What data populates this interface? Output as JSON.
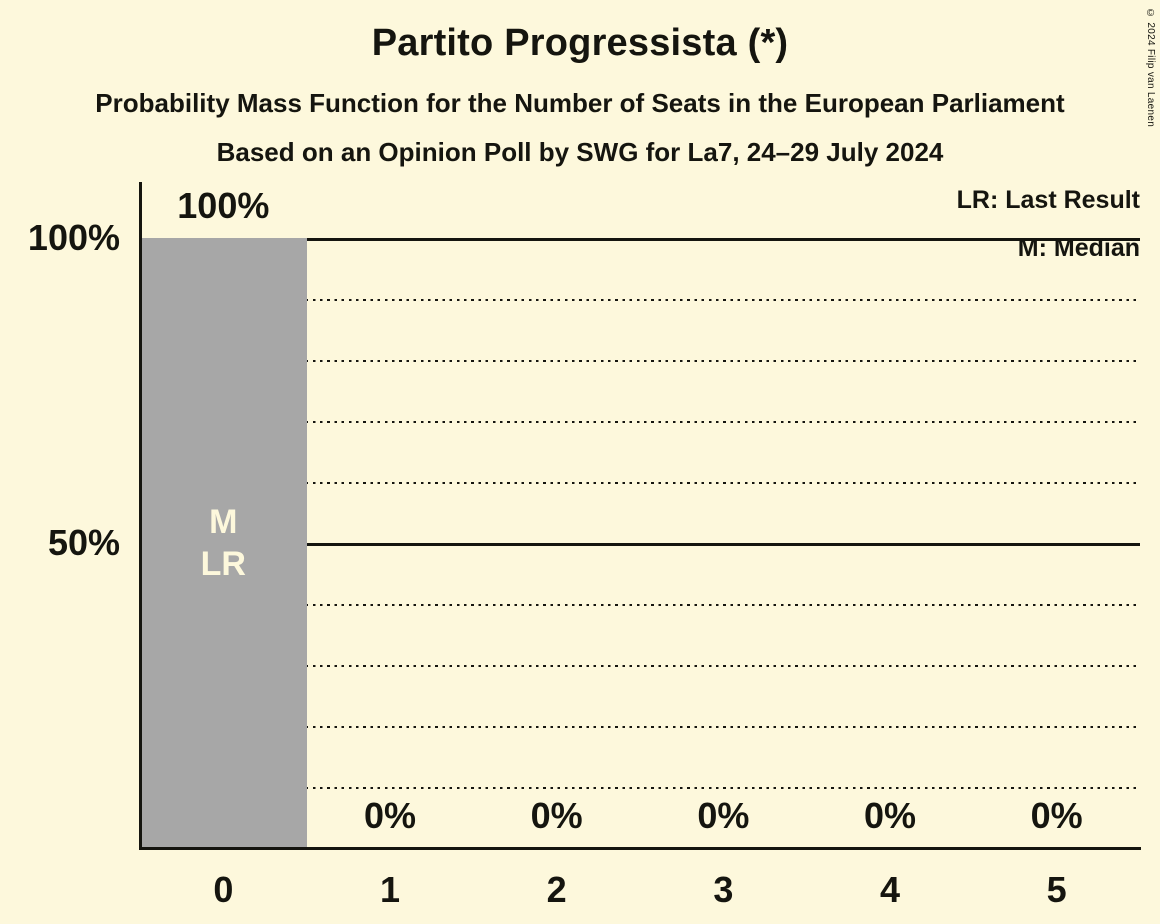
{
  "header": {
    "title": "Partito Progressista (*)",
    "subtitle1": "Probability Mass Function for the Number of Seats in the European Parliament",
    "subtitle2": "Based on an Opinion Poll by SWG for La7, 24–29 July 2024",
    "copyright": "© 2024 Filip van Laenen"
  },
  "legend": {
    "last_result": "LR: Last Result",
    "median": "M: Median"
  },
  "chart_data": {
    "type": "bar",
    "title": "Partito Progressista (*)",
    "categories": [
      "0",
      "1",
      "2",
      "3",
      "4",
      "5"
    ],
    "values": [
      100,
      0,
      0,
      0,
      0,
      0
    ],
    "value_labels": [
      "100%",
      "0%",
      "0%",
      "0%",
      "0%",
      "0%"
    ],
    "xlabel": "",
    "ylabel": "",
    "ylim": [
      0,
      100
    ],
    "yticks": [
      {
        "value": 100,
        "label": "100%"
      },
      {
        "value": 50,
        "label": "50%"
      }
    ],
    "gridlines": {
      "dotted_percent": [
        10,
        20,
        30,
        40,
        60,
        70,
        80,
        90
      ],
      "solid_percent": [
        50,
        100
      ]
    },
    "grid": true,
    "legend_position": "top-right",
    "median_seats": 0,
    "last_result_seats": 0,
    "bar_annotations": [
      {
        "category_index": 0,
        "lines": [
          "M",
          "LR"
        ]
      }
    ]
  },
  "colors": {
    "background": "#FDF8DC",
    "bar": "#A7A7A7",
    "ink": "#15150F",
    "bar_annotation_text": "#FDF8DC"
  }
}
